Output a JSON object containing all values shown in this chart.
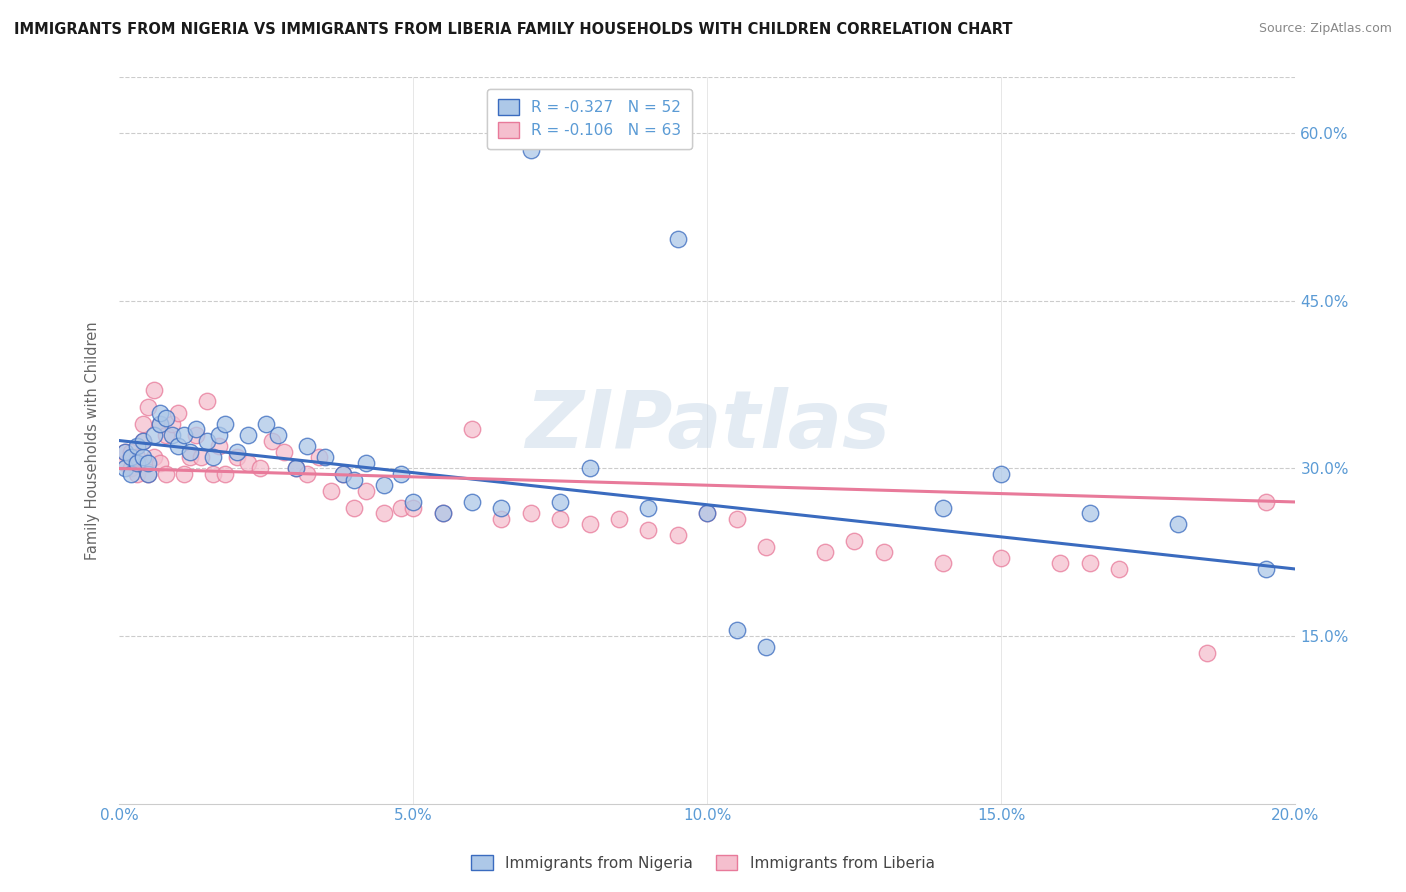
{
  "title": "IMMIGRANTS FROM NIGERIA VS IMMIGRANTS FROM LIBERIA FAMILY HOUSEHOLDS WITH CHILDREN CORRELATION CHART",
  "source": "Source: ZipAtlas.com",
  "ylabel": "Family Households with Children",
  "x_min": 0.0,
  "x_max": 0.2,
  "y_min": 0.0,
  "y_max": 0.65,
  "x_tick_labels": [
    "0.0%",
    "5.0%",
    "10.0%",
    "15.0%",
    "20.0%"
  ],
  "x_tick_values": [
    0.0,
    0.05,
    0.1,
    0.15,
    0.2
  ],
  "y_tick_labels": [
    "15.0%",
    "30.0%",
    "45.0%",
    "60.0%"
  ],
  "y_tick_values": [
    0.15,
    0.3,
    0.45,
    0.6
  ],
  "legend_label1": "R = -0.327   N = 52",
  "legend_label2": "R = -0.106   N = 63",
  "legend_label_bottom1": "Immigrants from Nigeria",
  "legend_label_bottom2": "Immigrants from Liberia",
  "color_nigeria": "#adc8e8",
  "color_liberia": "#f5bfce",
  "color_nigeria_line": "#3a6bbf",
  "color_liberia_line": "#e87a9a",
  "watermark": "ZIPatlas",
  "title_color": "#1a1a1a",
  "axis_color": "#5b9bd5",
  "nigeria_x": [
    0.001,
    0.001,
    0.002,
    0.002,
    0.003,
    0.003,
    0.004,
    0.004,
    0.005,
    0.005,
    0.006,
    0.007,
    0.007,
    0.008,
    0.009,
    0.01,
    0.011,
    0.012,
    0.013,
    0.015,
    0.016,
    0.017,
    0.018,
    0.02,
    0.022,
    0.025,
    0.027,
    0.03,
    0.032,
    0.035,
    0.038,
    0.04,
    0.042,
    0.045,
    0.048,
    0.05,
    0.055,
    0.06,
    0.065,
    0.07,
    0.075,
    0.08,
    0.09,
    0.095,
    0.1,
    0.105,
    0.11,
    0.14,
    0.15,
    0.165,
    0.18,
    0.195
  ],
  "nigeria_y": [
    0.3,
    0.315,
    0.295,
    0.31,
    0.305,
    0.32,
    0.31,
    0.325,
    0.295,
    0.305,
    0.33,
    0.34,
    0.35,
    0.345,
    0.33,
    0.32,
    0.33,
    0.315,
    0.335,
    0.325,
    0.31,
    0.33,
    0.34,
    0.315,
    0.33,
    0.34,
    0.33,
    0.3,
    0.32,
    0.31,
    0.295,
    0.29,
    0.305,
    0.285,
    0.295,
    0.27,
    0.26,
    0.27,
    0.265,
    0.585,
    0.27,
    0.3,
    0.265,
    0.505,
    0.26,
    0.155,
    0.14,
    0.265,
    0.295,
    0.26,
    0.25,
    0.21
  ],
  "liberia_x": [
    0.001,
    0.001,
    0.002,
    0.002,
    0.003,
    0.003,
    0.004,
    0.004,
    0.005,
    0.005,
    0.006,
    0.006,
    0.007,
    0.007,
    0.008,
    0.008,
    0.009,
    0.01,
    0.011,
    0.012,
    0.013,
    0.014,
    0.015,
    0.016,
    0.017,
    0.018,
    0.02,
    0.022,
    0.024,
    0.026,
    0.028,
    0.03,
    0.032,
    0.034,
    0.036,
    0.038,
    0.04,
    0.042,
    0.045,
    0.048,
    0.05,
    0.055,
    0.06,
    0.065,
    0.07,
    0.075,
    0.08,
    0.085,
    0.09,
    0.095,
    0.1,
    0.105,
    0.11,
    0.12,
    0.125,
    0.13,
    0.14,
    0.15,
    0.16,
    0.165,
    0.17,
    0.185,
    0.195
  ],
  "liberia_y": [
    0.305,
    0.315,
    0.3,
    0.315,
    0.295,
    0.31,
    0.325,
    0.34,
    0.295,
    0.355,
    0.31,
    0.37,
    0.305,
    0.34,
    0.295,
    0.33,
    0.34,
    0.35,
    0.295,
    0.31,
    0.33,
    0.31,
    0.36,
    0.295,
    0.32,
    0.295,
    0.31,
    0.305,
    0.3,
    0.325,
    0.315,
    0.3,
    0.295,
    0.31,
    0.28,
    0.295,
    0.265,
    0.28,
    0.26,
    0.265,
    0.265,
    0.26,
    0.335,
    0.255,
    0.26,
    0.255,
    0.25,
    0.255,
    0.245,
    0.24,
    0.26,
    0.255,
    0.23,
    0.225,
    0.235,
    0.225,
    0.215,
    0.22,
    0.215,
    0.215,
    0.21,
    0.135,
    0.27
  ]
}
